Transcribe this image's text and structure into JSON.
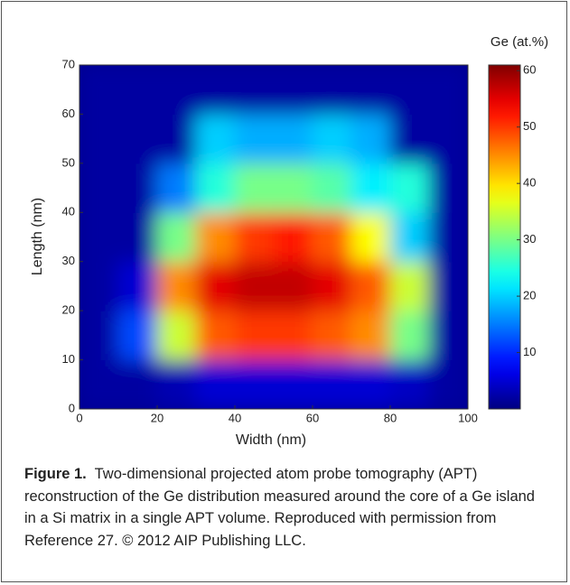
{
  "chart_data": {
    "type": "heatmap",
    "xlabel": "Width (nm)",
    "ylabel": "Length (nm)",
    "xlim": [
      0,
      100
    ],
    "xticks": [
      0,
      20,
      40,
      60,
      80,
      100
    ],
    "ylim": [
      0,
      70
    ],
    "yticks": [
      0,
      10,
      20,
      30,
      40,
      50,
      60,
      70
    ],
    "xbins": [
      0,
      10,
      20,
      30,
      40,
      50,
      60,
      70,
      80,
      90,
      100
    ],
    "ybins": [
      0,
      10,
      20,
      30,
      40,
      50,
      60,
      70
    ],
    "z": [
      [
        2,
        2,
        3,
        5,
        5,
        5,
        5,
        5,
        4,
        2
      ],
      [
        2,
        12,
        35,
        48,
        50,
        50,
        48,
        45,
        30,
        2
      ],
      [
        2,
        5,
        45,
        55,
        57,
        57,
        55,
        48,
        35,
        2
      ],
      [
        2,
        2,
        30,
        45,
        50,
        52,
        48,
        38,
        20,
        2
      ],
      [
        2,
        2,
        15,
        25,
        30,
        30,
        28,
        22,
        25,
        2
      ],
      [
        2,
        2,
        2,
        20,
        18,
        18,
        20,
        18,
        2,
        2
      ],
      [
        2,
        2,
        2,
        2,
        2,
        2,
        2,
        2,
        2,
        2
      ]
    ],
    "colormap": "jet",
    "colorbar": {
      "label": "Ge (at.%)",
      "lim": [
        0,
        61
      ],
      "ticks": [
        10,
        20,
        30,
        40,
        50,
        60
      ]
    }
  },
  "caption": {
    "label": "Figure 1.",
    "text": "Two-dimensional projected atom probe tomography (APT) reconstruction of the Ge distribution measured around the core of a Ge island in a Si matrix in a single APT volume. Reproduced with permission from Reference 27. © 2012 AIP Publishing LLC."
  }
}
